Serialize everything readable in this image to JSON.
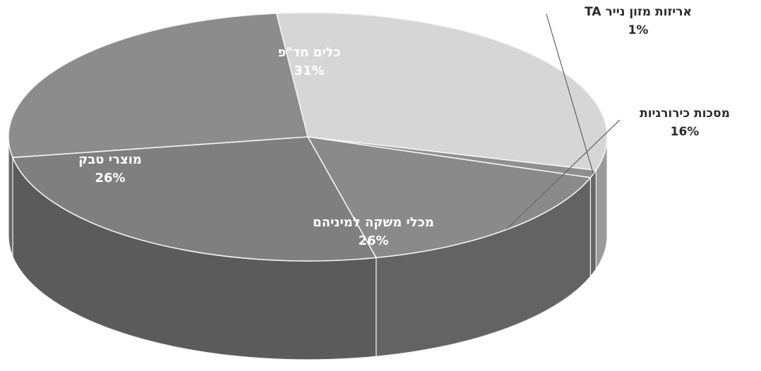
{
  "chart_data": {
    "type": "pie",
    "title": "",
    "slices": [
      {
        "label": "כלים חד\"פ",
        "percent_label": "31%",
        "value": 31,
        "color": "#d6d6d6",
        "label_color": "#ffffff"
      },
      {
        "label": "אריזות מזון נייר TA",
        "percent_label": "1%",
        "value": 1,
        "color": "#8f8f8f",
        "label_color": "#2b2b2b"
      },
      {
        "label": "מסכות כירורגיות",
        "percent_label": "16%",
        "value": 16,
        "color": "#8a8a8a",
        "label_color": "#2b2b2b"
      },
      {
        "label": "מכלי משקה למיניהם",
        "percent_label": "26%",
        "value": 26,
        "color": "#7f7f7f",
        "label_color": "#ffffff"
      },
      {
        "label": "מוצרי טבק",
        "percent_label": "26%",
        "value": 26,
        "color": "#8c8c8c",
        "label_color": "#ffffff"
      }
    ],
    "legend": "none",
    "style": "3d-pie"
  }
}
